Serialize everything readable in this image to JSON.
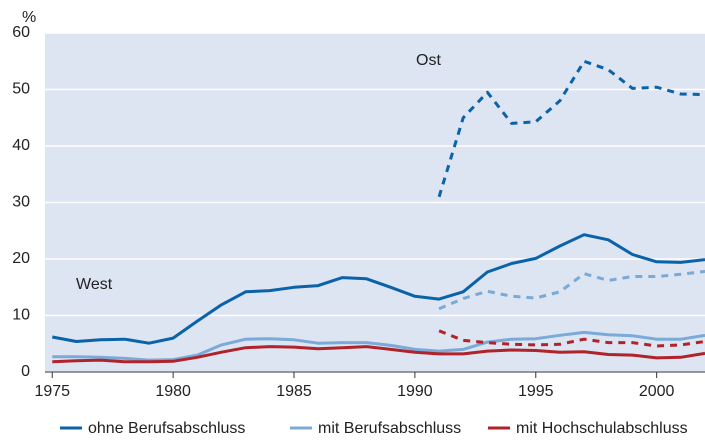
{
  "chart_data": {
    "type": "line",
    "y_label": "%",
    "annotations": [
      "West",
      "Ost"
    ],
    "x": [
      1975,
      1976,
      1977,
      1978,
      1979,
      1980,
      1981,
      1982,
      1983,
      1984,
      1985,
      1986,
      1987,
      1988,
      1989,
      1990,
      1991,
      1992,
      1993,
      1994,
      1995,
      1996,
      1997,
      1998,
      1999,
      2000,
      2001,
      2002
    ],
    "series": [
      {
        "name": "ohne Berufsabschluss",
        "color": "#0a62a8",
        "values": [
          6.2,
          5.4,
          5.7,
          5.8,
          5.1,
          6.0,
          9.0,
          11.9,
          14.2,
          14.4,
          15.0,
          15.3,
          16.7,
          16.5,
          15.0,
          13.4,
          12.9,
          14.2,
          17.7,
          19.2,
          20.1,
          22.3,
          24.3,
          23.4,
          20.8,
          19.5,
          19.4,
          19.9
        ],
        "values_ost": [
          null,
          null,
          null,
          null,
          null,
          null,
          null,
          null,
          null,
          null,
          null,
          null,
          null,
          null,
          null,
          null,
          31,
          45,
          49.5,
          44,
          44.3,
          48,
          55,
          53.5,
          50.2,
          50.4,
          49.2,
          49.1
        ]
      },
      {
        "name": "mit Berufsabschluss",
        "color": "#7aaad8",
        "values": [
          2.7,
          2.7,
          2.6,
          2.4,
          2.1,
          2.2,
          3.0,
          4.8,
          5.8,
          5.9,
          5.7,
          5.1,
          5.2,
          5.2,
          4.7,
          4.0,
          3.7,
          4.0,
          5.3,
          5.8,
          5.9,
          6.5,
          7.0,
          6.6,
          6.4,
          5.8,
          5.8,
          6.5
        ],
        "values_ost": [
          null,
          null,
          null,
          null,
          null,
          null,
          null,
          null,
          null,
          null,
          null,
          null,
          null,
          null,
          null,
          null,
          11.2,
          13,
          14.3,
          13.4,
          13.1,
          14.2,
          17.4,
          16.2,
          16.9,
          16.9,
          17.3,
          17.8
        ]
      },
      {
        "name": "mit Hochschulabschluss",
        "color": "#b0232a",
        "values": [
          1.8,
          2.0,
          2.1,
          1.8,
          1.8,
          1.9,
          2.6,
          3.5,
          4.3,
          4.5,
          4.4,
          4.1,
          4.3,
          4.5,
          4.0,
          3.5,
          3.2,
          3.2,
          3.7,
          3.9,
          3.8,
          3.5,
          3.6,
          3.1,
          3.0,
          2.5,
          2.6,
          3.3
        ],
        "values_ost": [
          null,
          null,
          null,
          null,
          null,
          null,
          null,
          null,
          null,
          null,
          null,
          null,
          null,
          null,
          null,
          null,
          7.3,
          5.6,
          5.2,
          4.9,
          4.8,
          4.9,
          5.8,
          5.2,
          5.2,
          4.6,
          4.8,
          5.4
        ]
      }
    ],
    "xlim": [
      1974.7,
      2002
    ],
    "xticks": [
      1975,
      1980,
      1985,
      1990,
      1995,
      2000
    ],
    "ylim": [
      0,
      60
    ],
    "yticks": [
      0,
      10,
      20,
      30,
      40,
      50,
      60
    ],
    "grid": true
  }
}
